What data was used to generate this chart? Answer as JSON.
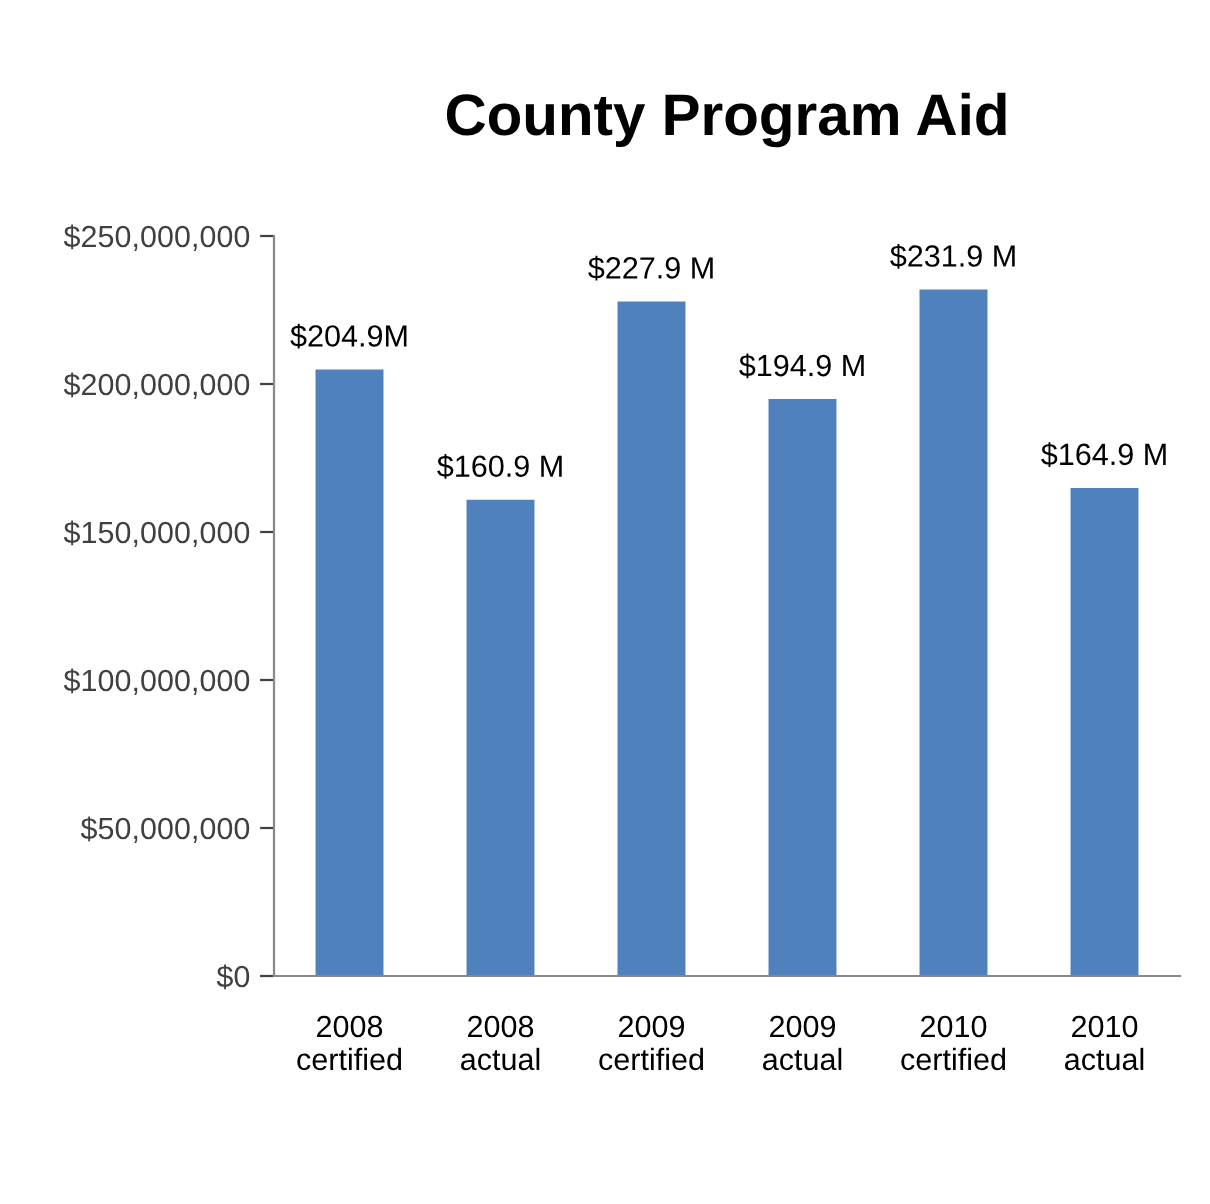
{
  "chart_data": {
    "type": "bar",
    "title": "County Program Aid",
    "categories": [
      "2008\ncertified",
      "2008\nactual",
      "2009\ncertified",
      "2009\nactual",
      "2010\ncertified",
      "2010\nactual"
    ],
    "values": [
      204900000,
      160900000,
      227900000,
      194900000,
      231900000,
      164900000
    ],
    "value_labels": [
      "$204.9M",
      "$160.9 M",
      "$227.9 M",
      "$194.9 M",
      "$231.9 M",
      "$164.9 M"
    ],
    "color": "#4f81bd",
    "ylim": [
      0,
      250000000
    ],
    "yticks": [
      {
        "value": 0,
        "label": "$0"
      },
      {
        "value": 50000000,
        "label": "$50,000,000"
      },
      {
        "value": 100000000,
        "label": "$100,000,000"
      },
      {
        "value": 150000000,
        "label": "$150,000,000"
      },
      {
        "value": 200000000,
        "label": "$200,000,000"
      },
      {
        "value": 250000000,
        "label": "$250,000,000"
      }
    ],
    "grid": false
  }
}
